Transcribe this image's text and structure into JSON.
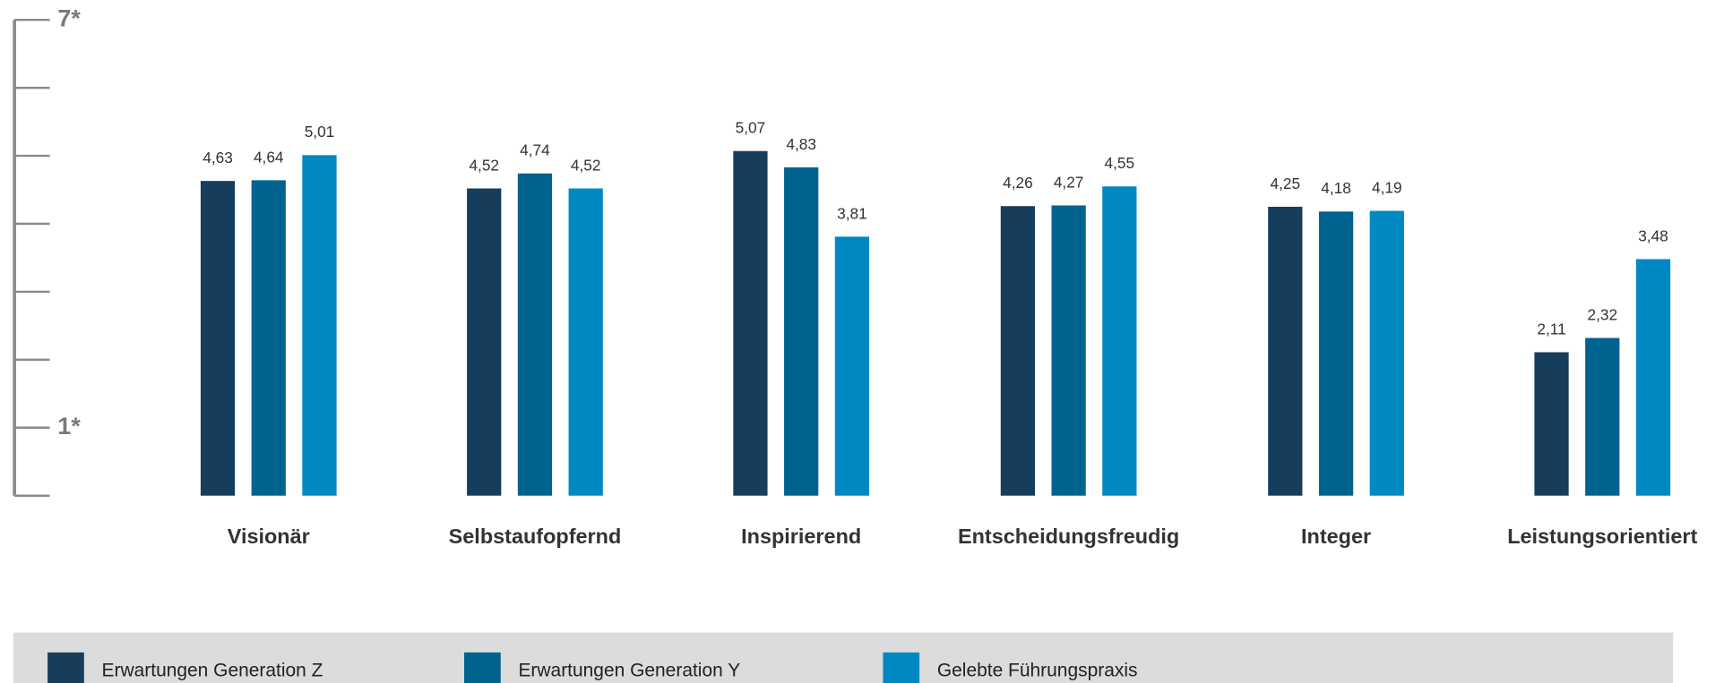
{
  "chart_data": {
    "type": "bar",
    "categories": [
      "Visionär",
      "Selbstaufopfernd",
      "Inspirierend",
      "Entscheidungsfreudig",
      "Integer",
      "Leistungsorientiert"
    ],
    "series": [
      {
        "name": "Erwartungen Generation Z",
        "color": "#173d5c",
        "values": [
          4.63,
          4.52,
          5.07,
          4.26,
          4.25,
          2.11
        ],
        "value_labels": [
          "4,63",
          "4,52",
          "5,07",
          "4,26",
          "4,25",
          "2,11"
        ]
      },
      {
        "name": "Erwartungen Generation Y",
        "color": "#00628f",
        "values": [
          4.64,
          4.74,
          4.83,
          4.27,
          4.18,
          2.32
        ],
        "value_labels": [
          "4,64",
          "4,74",
          "4,83",
          "4,27",
          "4,18",
          "2,32"
        ]
      },
      {
        "name": "Gelebte Führungspraxis",
        "color": "#0088c2",
        "values": [
          5.01,
          4.52,
          3.81,
          4.55,
          4.19,
          3.48
        ],
        "value_labels": [
          "5,01",
          "4,52",
          "3,81",
          "4,55",
          "4,19",
          "3,48"
        ]
      }
    ],
    "ylim": [
      0,
      7
    ],
    "yticks": [
      {
        "value": 0
      },
      {
        "value": 1,
        "label": "1*"
      },
      {
        "value": 2
      },
      {
        "value": 3
      },
      {
        "value": 4
      },
      {
        "value": 5
      },
      {
        "value": 6
      },
      {
        "value": 7,
        "label": "7*"
      }
    ],
    "legend": "bottom"
  }
}
